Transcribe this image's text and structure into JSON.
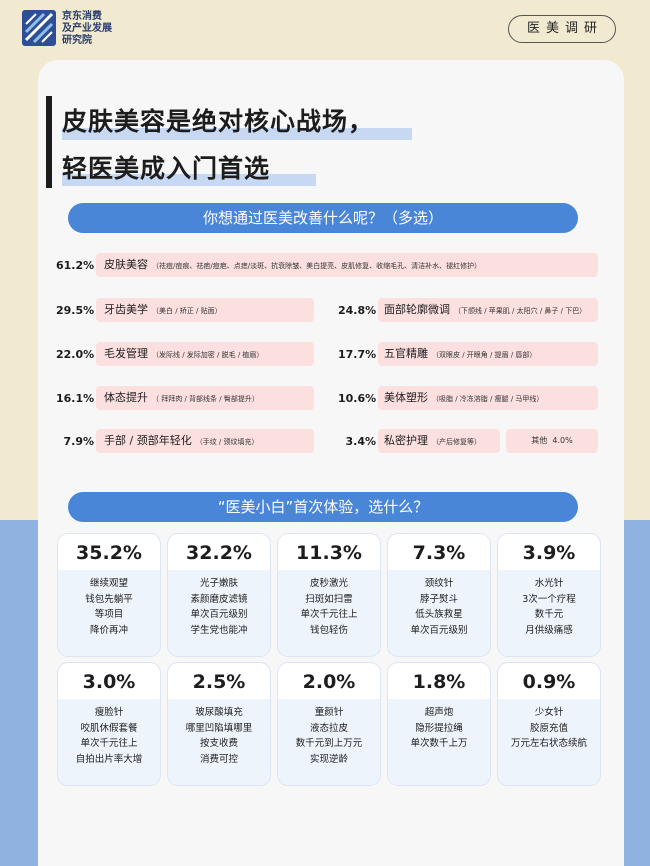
{
  "header": {
    "org_lines": [
      "京东消费",
      "及产业发展",
      "研究院"
    ],
    "tag": "医美调研",
    "accent": "#4a86d8"
  },
  "title": {
    "line1": "皮肤美容是绝对核心战场，",
    "line2": "轻医美成入门首选"
  },
  "survey1": {
    "question": "你想通过医美改善什么呢？（多选）",
    "items": [
      {
        "pct": "61.2%",
        "value": 61.2,
        "label": "皮肤美容",
        "sub": "（祛痘/痘痕、祛疤/痘疤、点痣/淡斑、抗衰除皱、美白提亮、皮肌修复、收缩毛孔、清洁补水、褪红修护）"
      },
      {
        "pct": "29.5%",
        "value": 29.5,
        "label": "牙齿美学",
        "sub": "（美白 / 矫正 / 贴面）"
      },
      {
        "pct": "24.8%",
        "value": 24.8,
        "label": "面部轮廓微调",
        "sub": "（下颌线 / 苹果肌 / 太阳穴 / 鼻子 / 下巴）"
      },
      {
        "pct": "22.0%",
        "value": 22.0,
        "label": "毛发管理",
        "sub": "（发际线 / 发际加密 / 脱毛 / 植眉）"
      },
      {
        "pct": "17.7%",
        "value": 17.7,
        "label": "五官精雕",
        "sub": "（双眼皮 / 开眼角 / 提眉 / 唇部）"
      },
      {
        "pct": "16.1%",
        "value": 16.1,
        "label": "体态提升",
        "sub": "（ 拜拜肉 / 背部线条 / 臀部提升）"
      },
      {
        "pct": "10.6%",
        "value": 10.6,
        "label": "美体塑形",
        "sub": "（吸脂 / 冷冻溶脂 / 瘦腿 / 马甲线）"
      },
      {
        "pct": "7.9%",
        "value": 7.9,
        "label": "手部 / 颈部年轻化",
        "sub": "（手纹 / 颈纹填充）"
      },
      {
        "pct": "3.4%",
        "value": 3.4,
        "label": "私密护理",
        "sub": "（产后修复等）"
      }
    ],
    "other": {
      "label": "其他",
      "pct": "4.0%",
      "value": 4.0
    }
  },
  "survey2": {
    "question": "“医美小白”首次体验，选什么？",
    "tiles": [
      {
        "pct": "35.2%",
        "lines": [
          "继续观望",
          "钱包先躺平",
          "等项目",
          "降价再冲"
        ]
      },
      {
        "pct": "32.2%",
        "lines": [
          "光子嫩肤",
          "素颜磨皮滤镜",
          "单次百元级别",
          "学生党也能冲"
        ]
      },
      {
        "pct": "11.3%",
        "lines": [
          "皮秒激光",
          "扫斑如扫雷",
          "单次千元往上",
          "钱包轻伤"
        ]
      },
      {
        "pct": "7.3%",
        "lines": [
          "颈纹针",
          "脖子熨斗",
          "低头族救星",
          "单次百元级别"
        ]
      },
      {
        "pct": "3.9%",
        "lines": [
          "水光针",
          "3次一个疗程",
          "数千元",
          "月供级痛感"
        ]
      },
      {
        "pct": "3.0%",
        "lines": [
          "瘦脸针",
          "咬肌休假套餐",
          "单次千元往上",
          "自拍出片率大增"
        ]
      },
      {
        "pct": "2.5%",
        "lines": [
          "玻尿酸填充",
          "哪里凹陷填哪里",
          "按支收费",
          "消费可控"
        ]
      },
      {
        "pct": "2.0%",
        "lines": [
          "童颜针",
          "液态拉皮",
          "数千元到上万元",
          "实现逆龄"
        ]
      },
      {
        "pct": "1.8%",
        "lines": [
          "超声炮",
          "隐形提拉绳",
          "单次数千上万"
        ]
      },
      {
        "pct": "0.9%",
        "lines": [
          "少女针",
          "胶原充值",
          "万元左右状态续航"
        ]
      }
    ]
  }
}
